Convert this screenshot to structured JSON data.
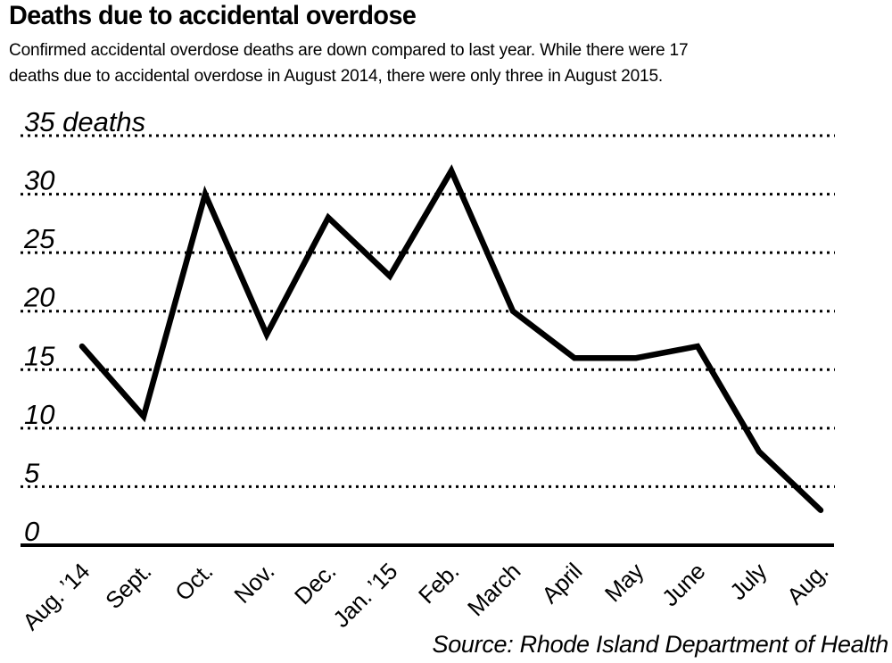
{
  "page": {
    "background": "#ffffff",
    "text_color": "#000000"
  },
  "header": {
    "title": "Deaths due to accidental overdose",
    "subtitle_line1": "Confirmed accidental overdose deaths are down compared to last year. While there were 17",
    "subtitle_line2": "deaths due to accidental overdose in August 2014, there were only three in August 2015."
  },
  "chart_data": {
    "type": "line",
    "title": "Deaths due to accidental overdose",
    "categories": [
      "Aug. ’14",
      "Sept.",
      "Oct.",
      "Nov.",
      "Dec.",
      "Jan. ’15",
      "Feb.",
      "March",
      "April",
      "May",
      "June",
      "July",
      "Aug."
    ],
    "values": [
      17,
      11,
      30,
      18,
      28,
      23,
      32,
      20,
      16,
      16,
      17,
      8,
      3
    ],
    "yticks": [
      35,
      30,
      25,
      20,
      15,
      10,
      5,
      0
    ],
    "ytick_labels": [
      "35 deaths",
      "30",
      "25",
      "20",
      "15",
      "10",
      "5",
      "0"
    ],
    "ylim": [
      0,
      35
    ],
    "xlabel": "",
    "ylabel": "deaths",
    "grid": "horizontal-dotted",
    "legend": "none",
    "line_color": "#000000",
    "annotations": []
  },
  "footer": {
    "source": "Source: Rhode Island Department of Health"
  }
}
